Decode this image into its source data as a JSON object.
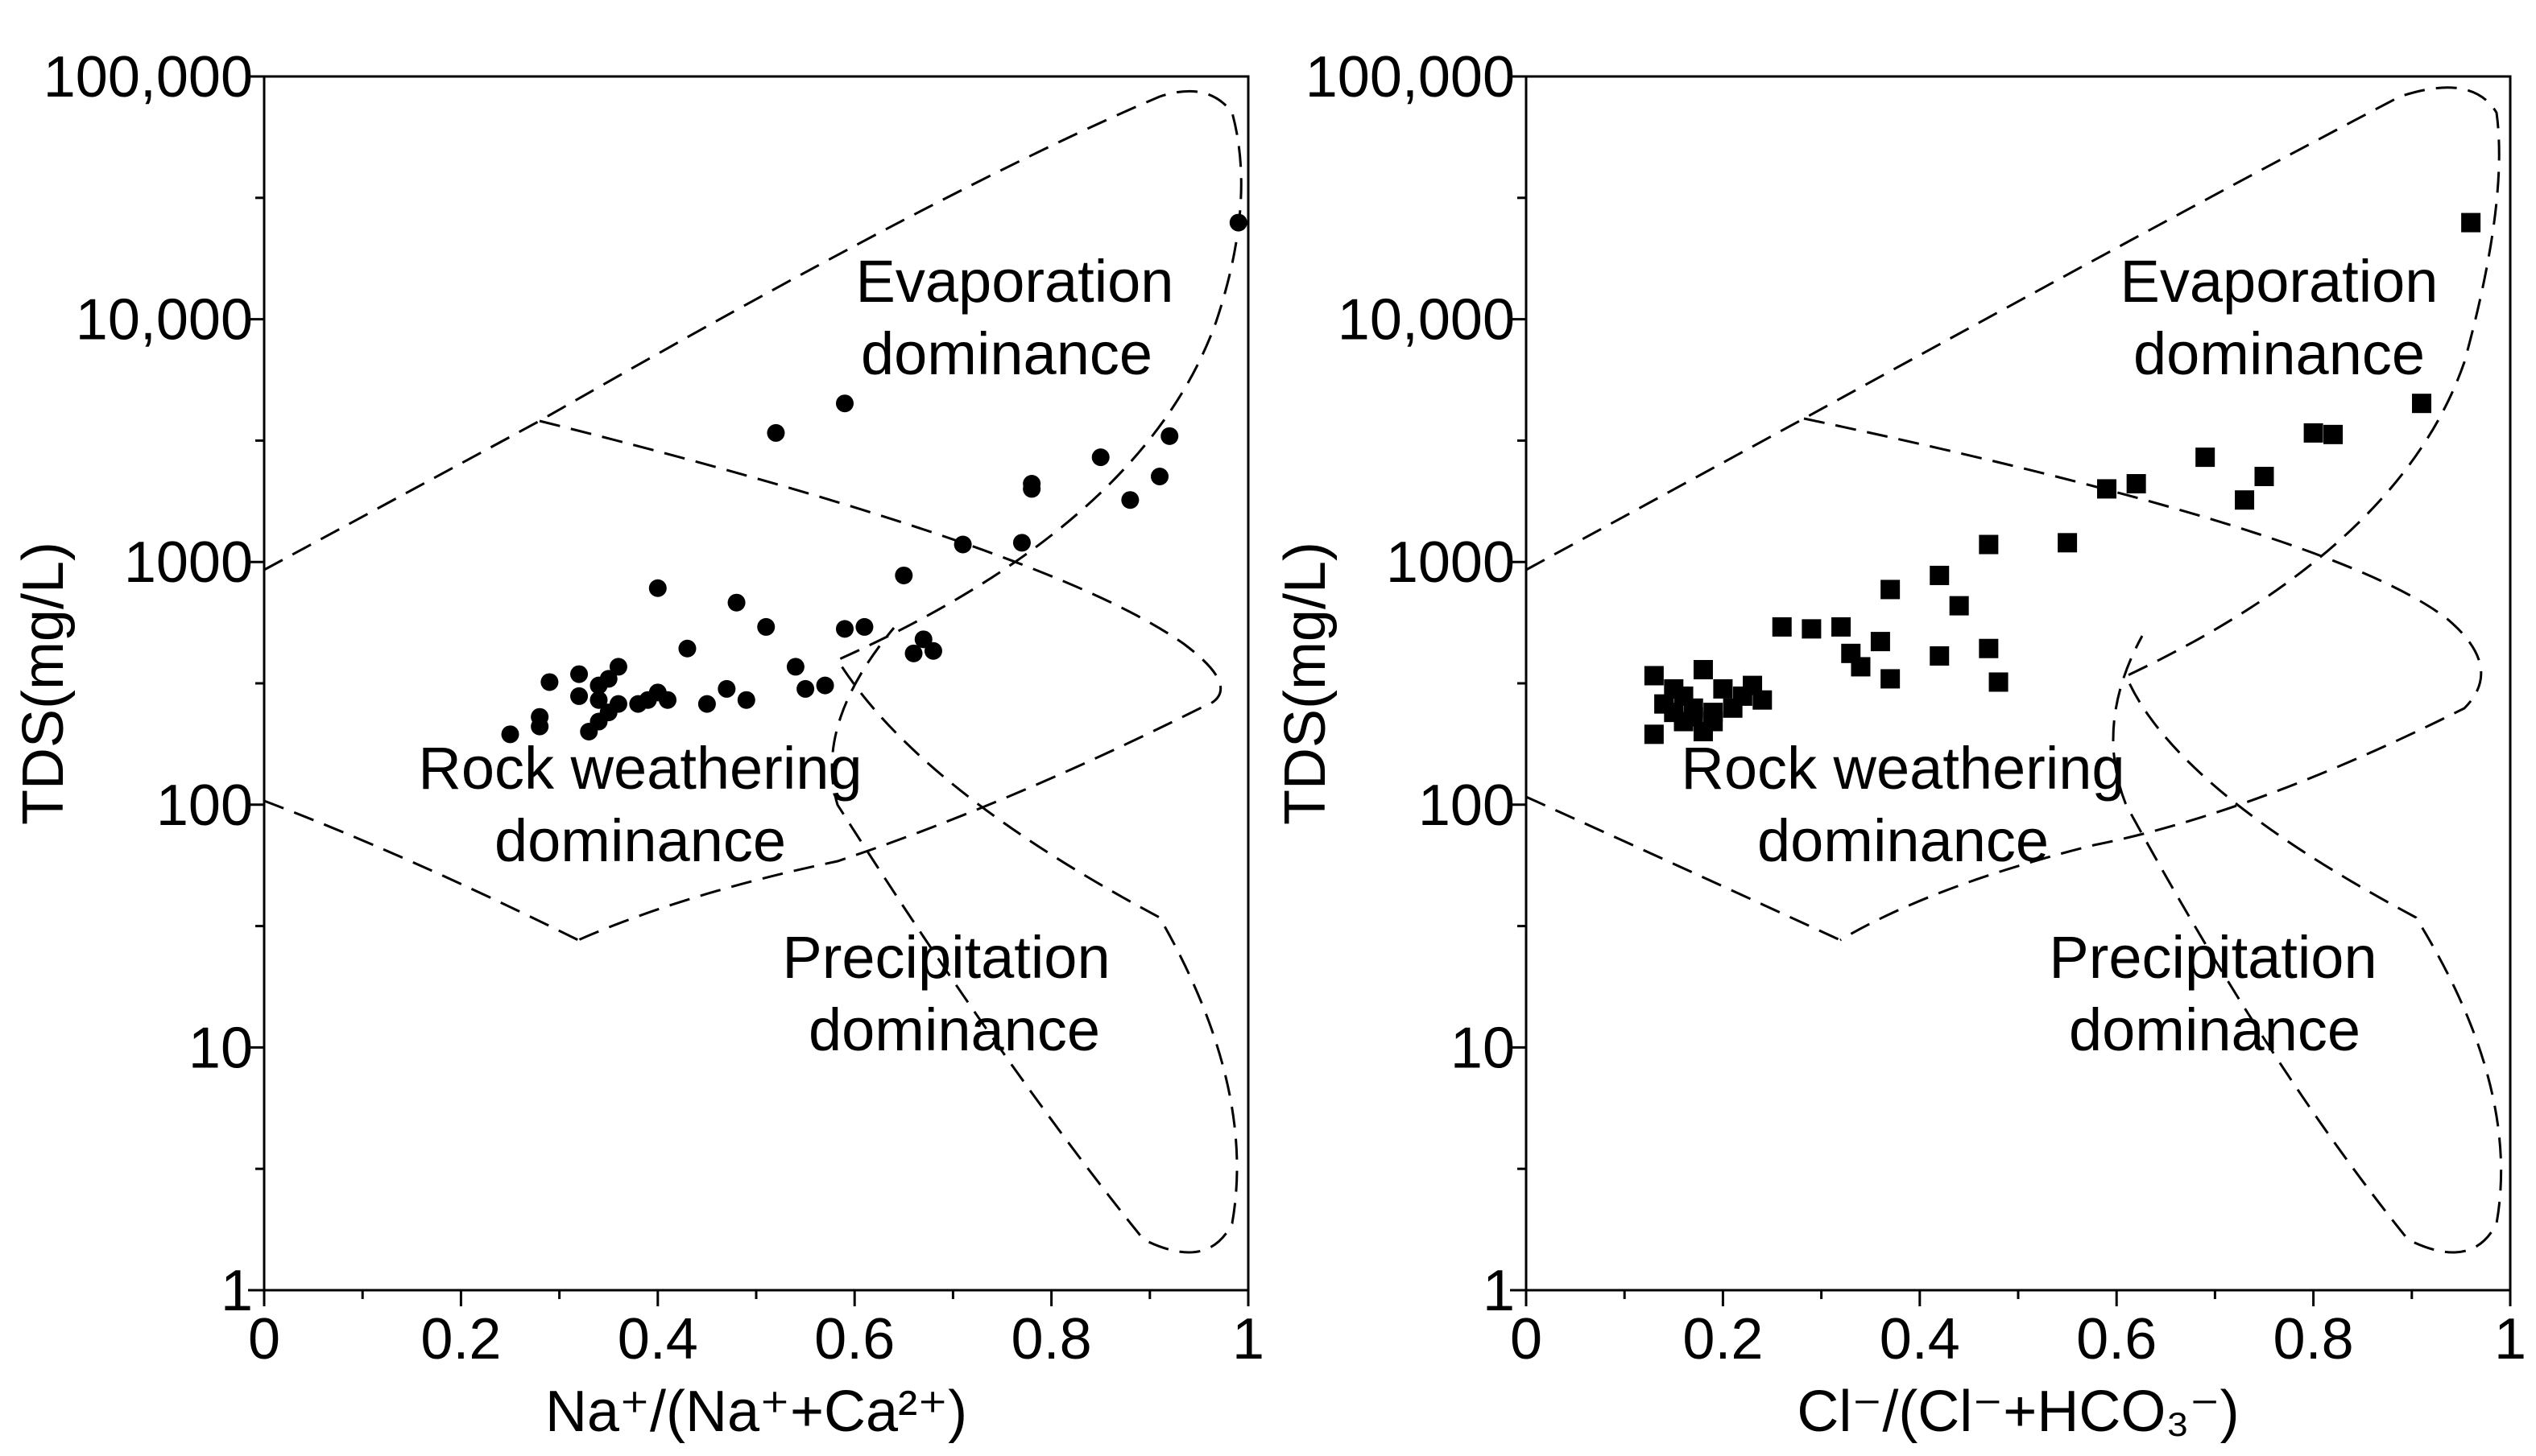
{
  "chart_data": [
    {
      "type": "scatter",
      "title": "",
      "xlabel": "Na⁺/(Na⁺+Ca²⁺)",
      "ylabel": "TDS(mg/L)",
      "xlim": [
        0,
        1
      ],
      "ylim": [
        1,
        100000
      ],
      "yscale": "log",
      "x_ticks": [
        "0",
        "0.2",
        "0.4",
        "0.6",
        "0.8",
        "1"
      ],
      "y_ticks": [
        "1",
        "10",
        "100",
        "1000",
        "10,000",
        "100,000"
      ],
      "grid": false,
      "legend": "none",
      "marker": "circle",
      "regions": [
        "Evaporation",
        "dominance",
        "Rock weathering",
        "dominance",
        "Precipitation",
        "dominance"
      ],
      "series": [
        {
          "points": [
            [
              0.25,
              195
            ],
            [
              0.28,
              210
            ],
            [
              0.28,
              230
            ],
            [
              0.29,
              320
            ],
            [
              0.32,
              345
            ],
            [
              0.32,
              280
            ],
            [
              0.33,
              200
            ],
            [
              0.34,
              220
            ],
            [
              0.34,
              270
            ],
            [
              0.34,
              310
            ],
            [
              0.35,
              240
            ],
            [
              0.35,
              330
            ],
            [
              0.36,
              260
            ],
            [
              0.36,
              370
            ],
            [
              0.38,
              260
            ],
            [
              0.39,
              270
            ],
            [
              0.4,
              290
            ],
            [
              0.4,
              780
            ],
            [
              0.41,
              270
            ],
            [
              0.43,
              440
            ],
            [
              0.45,
              260
            ],
            [
              0.47,
              300
            ],
            [
              0.48,
              680
            ],
            [
              0.49,
              270
            ],
            [
              0.51,
              540
            ],
            [
              0.52,
              3400
            ],
            [
              0.54,
              370
            ],
            [
              0.55,
              300
            ],
            [
              0.57,
              310
            ],
            [
              0.59,
              530
            ],
            [
              0.59,
              4500
            ],
            [
              0.61,
              540
            ],
            [
              0.65,
              880
            ],
            [
              0.66,
              420
            ],
            [
              0.67,
              480
            ],
            [
              0.68,
              430
            ],
            [
              0.71,
              1180
            ],
            [
              0.77,
              1200
            ],
            [
              0.78,
              2100
            ],
            [
              0.78,
              2000
            ],
            [
              0.85,
              2700
            ],
            [
              0.88,
              1800
            ],
            [
              0.91,
              2250
            ],
            [
              0.92,
              3300
            ],
            [
              0.99,
              25000
            ]
          ]
        }
      ]
    },
    {
      "type": "scatter",
      "title": "",
      "xlabel": "Cl⁻/(Cl⁻+HCO₃⁻)",
      "ylabel": "TDS(mg/L)",
      "xlim": [
        0,
        1
      ],
      "ylim": [
        1,
        100000
      ],
      "yscale": "log",
      "x_ticks": [
        "0",
        "0.2",
        "0.4",
        "0.6",
        "0.8",
        "1"
      ],
      "y_ticks": [
        "1",
        "10",
        "100",
        "1000",
        "10,000",
        "100,000"
      ],
      "grid": false,
      "legend": "none",
      "marker": "square",
      "regions": [
        "Evaporation",
        "dominance",
        "Rock weathering",
        "dominance",
        "Precipitation",
        "dominance"
      ],
      "series": [
        {
          "points": [
            [
              0.13,
              195
            ],
            [
              0.13,
              340
            ],
            [
              0.14,
              260
            ],
            [
              0.15,
              300
            ],
            [
              0.15,
              240
            ],
            [
              0.16,
              220
            ],
            [
              0.16,
              280
            ],
            [
              0.17,
              250
            ],
            [
              0.17,
              230
            ],
            [
              0.18,
              200
            ],
            [
              0.18,
              360
            ],
            [
              0.19,
              240
            ],
            [
              0.19,
              220
            ],
            [
              0.2,
              300
            ],
            [
              0.21,
              250
            ],
            [
              0.22,
              280
            ],
            [
              0.23,
              310
            ],
            [
              0.24,
              270
            ],
            [
              0.26,
              540
            ],
            [
              0.29,
              530
            ],
            [
              0.32,
              540
            ],
            [
              0.33,
              420
            ],
            [
              0.34,
              370
            ],
            [
              0.36,
              470
            ],
            [
              0.37,
              770
            ],
            [
              0.37,
              330
            ],
            [
              0.42,
              880
            ],
            [
              0.42,
              410
            ],
            [
              0.44,
              660
            ],
            [
              0.47,
              440
            ],
            [
              0.47,
              1180
            ],
            [
              0.48,
              320
            ],
            [
              0.55,
              1200
            ],
            [
              0.59,
              2000
            ],
            [
              0.62,
              2100
            ],
            [
              0.69,
              2700
            ],
            [
              0.73,
              1800
            ],
            [
              0.75,
              2250
            ],
            [
              0.8,
              3400
            ],
            [
              0.82,
              3350
            ],
            [
              0.91,
              4500
            ],
            [
              0.96,
              25000
            ]
          ]
        }
      ]
    }
  ]
}
